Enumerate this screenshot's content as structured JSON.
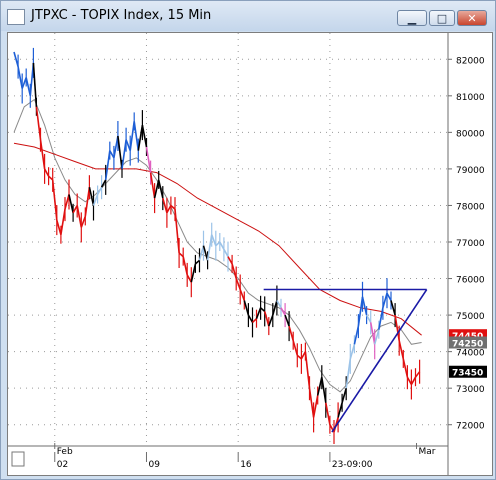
{
  "window": {
    "title": "JTPXC - TOPIX Index, 15 Min",
    "buttons": {
      "minimize_glyph": "▁",
      "maximize_glyph": "□",
      "close_glyph": "✕"
    }
  },
  "chart_data": {
    "type": "line",
    "instrument": "JTPXC - TOPIX Index",
    "interval": "15 Min",
    "ylim": [
      7150,
      8250
    ],
    "y_ticks": [
      {
        "value": 8200,
        "label": "82000"
      },
      {
        "value": 8100,
        "label": "81000"
      },
      {
        "value": 8000,
        "label": "80000"
      },
      {
        "value": 7900,
        "label": "79000"
      },
      {
        "value": 7800,
        "label": "78000"
      },
      {
        "value": 7700,
        "label": "77000"
      },
      {
        "value": 7600,
        "label": "76000"
      },
      {
        "value": 7500,
        "label": "75000"
      },
      {
        "value": 7400,
        "label": "74000"
      },
      {
        "value": 7300,
        "label": "73000"
      },
      {
        "value": 7200,
        "label": "72000"
      }
    ],
    "x_labels": [
      {
        "label": "Feb",
        "row": "month",
        "at": 4
      },
      {
        "label": "02",
        "row": "day",
        "at": 4
      },
      {
        "label": "09",
        "row": "day",
        "at": 13
      },
      {
        "label": "16",
        "row": "day",
        "at": 22
      },
      {
        "label": "23-09:00",
        "row": "day",
        "at": 31
      },
      {
        "label": "Mar",
        "row": "month",
        "at": 39.5
      }
    ],
    "x_range": [
      0,
      42
    ],
    "price_badges": [
      {
        "value": 7445,
        "label": "74450",
        "color": "#e01010",
        "text_color": "#ffffff"
      },
      {
        "value": 7425,
        "label": "74250",
        "color": "#707070",
        "text_color": "#ffffff"
      },
      {
        "value": 7345,
        "label": "73450",
        "color": "#000000",
        "text_color": "#ffffff"
      }
    ],
    "series": [
      {
        "name": "price",
        "colors": {
          "up": "#1e5fd6",
          "light": "#9cc3e8",
          "down": "#e01010",
          "neutral": "#000000",
          "pink": "#e060c0"
        },
        "points": [
          [
            0,
            8220,
            "up"
          ],
          [
            0.4,
            8180,
            "up"
          ],
          [
            0.8,
            8120,
            "up"
          ],
          [
            1.2,
            8150,
            "up"
          ],
          [
            1.6,
            8100,
            "up"
          ],
          [
            1.9,
            8190,
            "up"
          ],
          [
            2.2,
            8070,
            "neutral"
          ],
          [
            2.6,
            7980,
            "down"
          ],
          [
            3.0,
            7900,
            "down"
          ],
          [
            3.4,
            7880,
            "down"
          ],
          [
            3.8,
            7870,
            "down"
          ],
          [
            4.2,
            7760,
            "down"
          ],
          [
            4.6,
            7720,
            "down"
          ],
          [
            5.0,
            7790,
            "down"
          ],
          [
            5.4,
            7830,
            "down"
          ],
          [
            5.8,
            7780,
            "neutral"
          ],
          [
            6.2,
            7800,
            "down"
          ],
          [
            6.6,
            7740,
            "down"
          ],
          [
            7.0,
            7770,
            "down"
          ],
          [
            7.4,
            7850,
            "down"
          ],
          [
            7.8,
            7800,
            "neutral"
          ],
          [
            8.2,
            7830,
            "light"
          ],
          [
            8.6,
            7850,
            "light"
          ],
          [
            9.0,
            7870,
            "neutral"
          ],
          [
            9.4,
            7950,
            "up"
          ],
          [
            9.8,
            7930,
            "up"
          ],
          [
            10.2,
            7990,
            "up"
          ],
          [
            10.6,
            7900,
            "neutral"
          ],
          [
            11.0,
            7980,
            "up"
          ],
          [
            11.4,
            7950,
            "up"
          ],
          [
            11.8,
            8030,
            "up"
          ],
          [
            12.2,
            7950,
            "up"
          ],
          [
            12.6,
            8020,
            "neutral"
          ],
          [
            13.0,
            7960,
            "neutral"
          ],
          [
            13.4,
            7890,
            "pink"
          ],
          [
            13.8,
            7820,
            "down"
          ],
          [
            14.2,
            7870,
            "neutral"
          ],
          [
            14.6,
            7820,
            "neutral"
          ],
          [
            15.0,
            7780,
            "down"
          ],
          [
            15.4,
            7800,
            "down"
          ],
          [
            15.8,
            7790,
            "down"
          ],
          [
            16.2,
            7670,
            "down"
          ],
          [
            16.6,
            7660,
            "down"
          ],
          [
            17.0,
            7610,
            "down"
          ],
          [
            17.4,
            7590,
            "down"
          ],
          [
            17.8,
            7640,
            "neutral"
          ],
          [
            18.2,
            7650,
            "neutral"
          ],
          [
            18.6,
            7690,
            "light"
          ],
          [
            19.0,
            7650,
            "neutral"
          ],
          [
            19.4,
            7720,
            "light"
          ],
          [
            19.8,
            7690,
            "light"
          ],
          [
            20.2,
            7700,
            "light"
          ],
          [
            20.6,
            7680,
            "light"
          ],
          [
            21.0,
            7660,
            "light"
          ],
          [
            21.4,
            7640,
            "down"
          ],
          [
            21.8,
            7600,
            "down"
          ],
          [
            22.2,
            7570,
            "down"
          ],
          [
            22.6,
            7540,
            "down"
          ],
          [
            23.0,
            7500,
            "neutral"
          ],
          [
            23.4,
            7480,
            "neutral"
          ],
          [
            23.8,
            7490,
            "down"
          ],
          [
            24.2,
            7520,
            "neutral"
          ],
          [
            24.6,
            7510,
            "neutral"
          ],
          [
            25.0,
            7470,
            "down"
          ],
          [
            25.4,
            7500,
            "neutral"
          ],
          [
            25.8,
            7540,
            "neutral"
          ],
          [
            26.2,
            7520,
            "light"
          ],
          [
            26.6,
            7500,
            "pink"
          ],
          [
            27.0,
            7470,
            "neutral"
          ],
          [
            27.4,
            7430,
            "down"
          ],
          [
            27.8,
            7390,
            "down"
          ],
          [
            28.2,
            7380,
            "down"
          ],
          [
            28.6,
            7400,
            "down"
          ],
          [
            29.0,
            7300,
            "down"
          ],
          [
            29.4,
            7220,
            "down"
          ],
          [
            29.8,
            7280,
            "down"
          ],
          [
            30.2,
            7330,
            "neutral"
          ],
          [
            30.6,
            7260,
            "neutral"
          ],
          [
            31.0,
            7200,
            "down"
          ],
          [
            31.4,
            7180,
            "down"
          ],
          [
            31.8,
            7220,
            "down"
          ],
          [
            32.2,
            7260,
            "neutral"
          ],
          [
            32.6,
            7300,
            "neutral"
          ],
          [
            33.0,
            7380,
            "light"
          ],
          [
            33.4,
            7420,
            "light"
          ],
          [
            33.8,
            7470,
            "up"
          ],
          [
            34.2,
            7550,
            "up"
          ],
          [
            34.6,
            7500,
            "up"
          ],
          [
            35.0,
            7480,
            "light"
          ],
          [
            35.4,
            7420,
            "pink"
          ],
          [
            35.8,
            7460,
            "light"
          ],
          [
            36.2,
            7520,
            "up"
          ],
          [
            36.6,
            7560,
            "up"
          ],
          [
            37.0,
            7540,
            "up"
          ],
          [
            37.4,
            7500,
            "neutral"
          ],
          [
            37.8,
            7430,
            "down"
          ],
          [
            38.2,
            7380,
            "down"
          ],
          [
            38.6,
            7330,
            "down"
          ],
          [
            39.0,
            7310,
            "down"
          ],
          [
            39.4,
            7330,
            "down"
          ],
          [
            39.8,
            7345,
            "down"
          ]
        ]
      },
      {
        "name": "moving-average-short",
        "color": "#8a8a8a",
        "points": [
          [
            0,
            8000
          ],
          [
            1,
            8070
          ],
          [
            2,
            8090
          ],
          [
            3,
            8020
          ],
          [
            4,
            7930
          ],
          [
            5,
            7870
          ],
          [
            6,
            7830
          ],
          [
            7,
            7810
          ],
          [
            8,
            7830
          ],
          [
            9,
            7860
          ],
          [
            10,
            7890
          ],
          [
            11,
            7920
          ],
          [
            12,
            7930
          ],
          [
            13,
            7910
          ],
          [
            14,
            7870
          ],
          [
            15,
            7820
          ],
          [
            16,
            7760
          ],
          [
            17,
            7700
          ],
          [
            18,
            7670
          ],
          [
            19,
            7660
          ],
          [
            20,
            7650
          ],
          [
            21,
            7630
          ],
          [
            22,
            7600
          ],
          [
            23,
            7560
          ],
          [
            24,
            7540
          ],
          [
            25,
            7530
          ],
          [
            26,
            7520
          ],
          [
            27,
            7500
          ],
          [
            28,
            7460
          ],
          [
            29,
            7410
          ],
          [
            30,
            7350
          ],
          [
            31,
            7310
          ],
          [
            32,
            7290
          ],
          [
            33,
            7320
          ],
          [
            34,
            7380
          ],
          [
            35,
            7440
          ],
          [
            36,
            7470
          ],
          [
            37,
            7480
          ],
          [
            38,
            7460
          ],
          [
            39,
            7420
          ],
          [
            40,
            7425
          ]
        ]
      },
      {
        "name": "moving-average-long",
        "color": "#cc1010",
        "points": [
          [
            0,
            7970
          ],
          [
            2,
            7960
          ],
          [
            4,
            7940
          ],
          [
            6,
            7920
          ],
          [
            8,
            7900
          ],
          [
            10,
            7900
          ],
          [
            12,
            7900
          ],
          [
            14,
            7890
          ],
          [
            16,
            7860
          ],
          [
            18,
            7820
          ],
          [
            20,
            7790
          ],
          [
            22,
            7760
          ],
          [
            24,
            7730
          ],
          [
            26,
            7690
          ],
          [
            28,
            7630
          ],
          [
            30,
            7570
          ],
          [
            32,
            7540
          ],
          [
            34,
            7520
          ],
          [
            36,
            7510
          ],
          [
            38,
            7490
          ],
          [
            40,
            7445
          ]
        ]
      }
    ],
    "trendlines": [
      {
        "name": "resistance-line",
        "color": "#1a1aa6",
        "from": [
          24.5,
          7570
        ],
        "to": [
          40.5,
          7570
        ]
      },
      {
        "name": "support-line",
        "color": "#1a1aa6",
        "from": [
          31.2,
          7180
        ],
        "to": [
          40.5,
          7570
        ]
      }
    ]
  }
}
